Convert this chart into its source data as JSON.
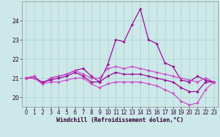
{
  "xlabel": "Windchill (Refroidissement éolien,°C)",
  "ylabel": "",
  "background_color": "#cce8e8",
  "grid_color": "#aacccc",
  "line_color1": "#990099",
  "line_color2": "#cc44cc",
  "xlim": [
    -0.5,
    23.5
  ],
  "ylim": [
    19.5,
    25.0
  ],
  "yticks": [
    20,
    21,
    22,
    23,
    24
  ],
  "xticks": [
    0,
    1,
    2,
    3,
    4,
    5,
    6,
    7,
    8,
    9,
    10,
    11,
    12,
    13,
    14,
    15,
    16,
    17,
    18,
    19,
    20,
    21,
    22,
    23
  ],
  "hours": [
    0,
    1,
    2,
    3,
    4,
    5,
    6,
    7,
    8,
    9,
    10,
    11,
    12,
    13,
    14,
    15,
    16,
    17,
    18,
    19,
    20,
    21,
    22,
    23
  ],
  "series1": [
    21.0,
    21.1,
    20.7,
    21.0,
    21.1,
    21.2,
    21.4,
    21.5,
    21.1,
    20.8,
    21.7,
    23.0,
    22.9,
    23.8,
    24.6,
    23.0,
    22.8,
    21.8,
    21.6,
    20.9,
    20.8,
    21.1,
    20.9,
    20.8
  ],
  "series2": [
    21.0,
    21.1,
    20.7,
    21.0,
    21.1,
    21.2,
    21.4,
    21.2,
    21.0,
    21.0,
    21.5,
    21.6,
    21.5,
    21.6,
    21.5,
    21.4,
    21.3,
    21.2,
    21.1,
    21.0,
    20.9,
    20.8,
    21.0,
    20.8
  ],
  "series3": [
    21.0,
    21.0,
    20.8,
    20.9,
    21.0,
    21.1,
    21.3,
    21.1,
    20.8,
    20.8,
    21.1,
    21.3,
    21.2,
    21.2,
    21.2,
    21.1,
    21.0,
    20.9,
    20.8,
    20.5,
    20.3,
    20.3,
    20.8,
    20.8
  ],
  "series4": [
    21.0,
    21.0,
    20.7,
    20.8,
    20.8,
    20.9,
    21.0,
    21.0,
    20.7,
    20.5,
    20.7,
    20.8,
    20.8,
    20.8,
    20.8,
    20.7,
    20.6,
    20.4,
    20.2,
    19.8,
    19.6,
    19.7,
    20.4,
    20.8
  ]
}
